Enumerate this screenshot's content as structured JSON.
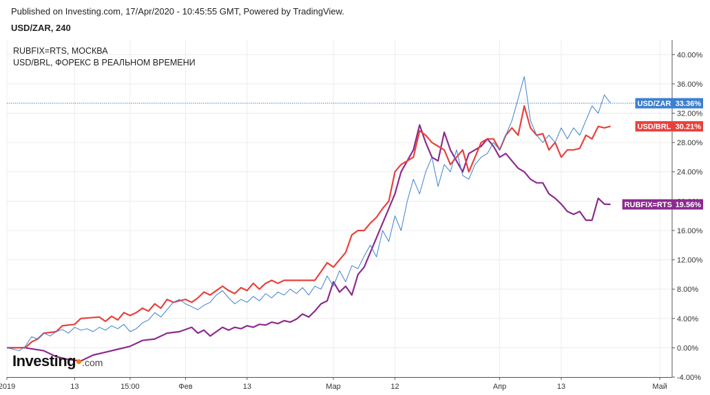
{
  "header": {
    "published": "Published on Investing.com, 17/Apr/2020 - 10:45:55 GMT, Powered by TradingView.",
    "subtitle": "USD/ZAR, 240"
  },
  "legend": [
    "RUBFIX=RTS, МОСКВА",
    "USD/BRL, ФОРЕКС В РЕАЛЬНОМ ВРЕМЕНИ"
  ],
  "logo": {
    "brand": "Investing",
    "suffix": ".com"
  },
  "colors": {
    "USD/ZAR": "#3d7fd1",
    "USD/BRL": "#e8413c",
    "RUBFIX=RTS": "#8c2a8e",
    "grid": "#ececec"
  },
  "chart_data": {
    "type": "line",
    "ylim": [
      -4,
      42
    ],
    "y_ticks": [
      -4,
      0,
      4,
      8,
      12,
      16,
      20,
      24,
      28,
      32,
      36,
      40
    ],
    "y_tick_labels": [
      "-4.00%",
      "0.00%",
      "4.00%",
      "8.00%",
      "12.00%",
      "16.00%",
      "20.00%",
      "24.00%",
      "28.00%",
      "32.00%",
      "36.00%",
      "40.00%"
    ],
    "x_range": [
      0,
      108
    ],
    "x_ticks": [
      {
        "x": 0,
        "label": "2019"
      },
      {
        "x": 11,
        "label": "13"
      },
      {
        "x": 20,
        "label": "15:00"
      },
      {
        "x": 29,
        "label": "Фев"
      },
      {
        "x": 39,
        "label": "13"
      },
      {
        "x": 53,
        "label": "Мар"
      },
      {
        "x": 63,
        "label": "12"
      },
      {
        "x": 80,
        "label": "Апр"
      },
      {
        "x": 90,
        "label": "13"
      },
      {
        "x": 106,
        "label": "Май"
      }
    ],
    "series": [
      {
        "name": "USD/ZAR",
        "label": "USD/ZAR",
        "last_label": "33.36%",
        "last": 33.36,
        "points": [
          [
            0,
            0
          ],
          [
            1,
            -0.2
          ],
          [
            2,
            -0.4
          ],
          [
            3,
            0.2
          ],
          [
            4,
            1.5
          ],
          [
            5,
            1.2
          ],
          [
            6,
            2
          ],
          [
            7,
            1.6
          ],
          [
            8,
            2.2
          ],
          [
            9,
            2.5
          ],
          [
            10,
            2
          ],
          [
            11,
            2.8
          ],
          [
            12,
            2.4
          ],
          [
            13,
            2.6
          ],
          [
            14,
            2.2
          ],
          [
            15,
            2.8
          ],
          [
            16,
            2.4
          ],
          [
            17,
            3
          ],
          [
            18,
            2.6
          ],
          [
            19,
            3.2
          ],
          [
            20,
            2.2
          ],
          [
            21,
            2.6
          ],
          [
            22,
            3.4
          ],
          [
            23,
            3.8
          ],
          [
            24,
            4.8
          ],
          [
            25,
            4.2
          ],
          [
            26,
            5.2
          ],
          [
            27,
            6.2
          ],
          [
            28,
            6.6
          ],
          [
            29,
            6
          ],
          [
            30,
            5.6
          ],
          [
            31,
            5.2
          ],
          [
            32,
            5.8
          ],
          [
            33,
            6.2
          ],
          [
            34,
            7.2
          ],
          [
            35,
            7.8
          ],
          [
            36,
            6.8
          ],
          [
            37,
            6
          ],
          [
            38,
            6.6
          ],
          [
            39,
            6.2
          ],
          [
            40,
            7
          ],
          [
            41,
            6.4
          ],
          [
            42,
            7.4
          ],
          [
            43,
            6.8
          ],
          [
            44,
            7.6
          ],
          [
            45,
            7.2
          ],
          [
            46,
            8
          ],
          [
            47,
            7.4
          ],
          [
            48,
            8.2
          ],
          [
            49,
            7.2
          ],
          [
            50,
            8.4
          ],
          [
            51,
            8
          ],
          [
            52,
            9.8
          ],
          [
            53,
            8.4
          ],
          [
            54,
            10.5
          ],
          [
            55,
            9
          ],
          [
            56,
            11.2
          ],
          [
            57,
            10.8
          ],
          [
            58,
            12.5
          ],
          [
            59,
            14
          ],
          [
            60,
            12.4
          ],
          [
            61,
            16
          ],
          [
            62,
            14.5
          ],
          [
            63,
            18
          ],
          [
            64,
            16
          ],
          [
            65,
            20
          ],
          [
            66,
            23
          ],
          [
            67,
            21
          ],
          [
            68,
            24
          ],
          [
            69,
            26
          ],
          [
            70,
            22
          ],
          [
            71,
            25
          ],
          [
            72,
            24
          ],
          [
            73,
            27
          ],
          [
            74,
            23.5
          ],
          [
            75,
            23
          ],
          [
            76,
            25
          ],
          [
            77,
            26
          ],
          [
            78,
            26.5
          ],
          [
            79,
            28
          ],
          [
            80,
            27
          ],
          [
            81,
            29
          ],
          [
            82,
            31
          ],
          [
            83,
            34
          ],
          [
            84,
            37
          ],
          [
            85,
            31
          ],
          [
            86,
            29
          ],
          [
            87,
            28
          ],
          [
            88,
            29
          ],
          [
            89,
            28
          ],
          [
            90,
            30
          ],
          [
            91,
            28.5
          ],
          [
            92,
            30
          ],
          [
            93,
            29
          ],
          [
            94,
            31
          ],
          [
            95,
            33
          ],
          [
            96,
            32
          ],
          [
            97,
            34.5
          ],
          [
            98,
            33.36
          ]
        ]
      },
      {
        "name": "USD/BRL",
        "label": "USD/BRL",
        "last_label": "30.21%",
        "last": 30.21,
        "points": [
          [
            0,
            0
          ],
          [
            3,
            0
          ],
          [
            4,
            0.8
          ],
          [
            5,
            1.2
          ],
          [
            6,
            2
          ],
          [
            8,
            2.2
          ],
          [
            9,
            3
          ],
          [
            11,
            3.2
          ],
          [
            12,
            4
          ],
          [
            15,
            4.2
          ],
          [
            16,
            3.6
          ],
          [
            17,
            4.3
          ],
          [
            18,
            3.8
          ],
          [
            19,
            4.8
          ],
          [
            20,
            4.4
          ],
          [
            21,
            4.8
          ],
          [
            22,
            5.4
          ],
          [
            23,
            5
          ],
          [
            24,
            6
          ],
          [
            25,
            5.4
          ],
          [
            26,
            6.6
          ],
          [
            27,
            6.2
          ],
          [
            28,
            6.4
          ],
          [
            29,
            6.6
          ],
          [
            30,
            6.2
          ],
          [
            31,
            6.8
          ],
          [
            32,
            7.6
          ],
          [
            33,
            7.2
          ],
          [
            34,
            7.8
          ],
          [
            35,
            8.4
          ],
          [
            36,
            7.8
          ],
          [
            37,
            7.4
          ],
          [
            38,
            8.2
          ],
          [
            39,
            7.8
          ],
          [
            40,
            8.8
          ],
          [
            41,
            8
          ],
          [
            42,
            8.8
          ],
          [
            43,
            9.2
          ],
          [
            44,
            8.8
          ],
          [
            45,
            9.2
          ],
          [
            46,
            9.2
          ],
          [
            47,
            9.2
          ],
          [
            48,
            9.2
          ],
          [
            49,
            9.2
          ],
          [
            50,
            9.2
          ],
          [
            51,
            10.4
          ],
          [
            52,
            11.6
          ],
          [
            53,
            11
          ],
          [
            54,
            12
          ],
          [
            55,
            13
          ],
          [
            56,
            15.4
          ],
          [
            57,
            16
          ],
          [
            58,
            16
          ],
          [
            59,
            17
          ],
          [
            60,
            17.8
          ],
          [
            61,
            19
          ],
          [
            62,
            20
          ],
          [
            63,
            24
          ],
          [
            64,
            25
          ],
          [
            65,
            25.5
          ],
          [
            66,
            26
          ],
          [
            67,
            29.6
          ],
          [
            68,
            29
          ],
          [
            69,
            28
          ],
          [
            70,
            27.5
          ],
          [
            71,
            27
          ],
          [
            72,
            25
          ],
          [
            73,
            26
          ],
          [
            74,
            27
          ],
          [
            75,
            24
          ],
          [
            76,
            26
          ],
          [
            77,
            28
          ],
          [
            78,
            28.5
          ],
          [
            79,
            28.5
          ],
          [
            80,
            27
          ],
          [
            81,
            29
          ],
          [
            82,
            30
          ],
          [
            83,
            29
          ],
          [
            84,
            33
          ],
          [
            85,
            30
          ],
          [
            86,
            29
          ],
          [
            87,
            29.2
          ],
          [
            88,
            27
          ],
          [
            89,
            28
          ],
          [
            90,
            26
          ],
          [
            91,
            27
          ],
          [
            92,
            27
          ],
          [
            93,
            27.2
          ],
          [
            94,
            29
          ],
          [
            95,
            28.5
          ],
          [
            96,
            30.2
          ],
          [
            97,
            30
          ],
          [
            98,
            30.21
          ]
        ]
      },
      {
        "name": "RUBFIX=RTS",
        "label": "RUBFIX=RTS",
        "last_label": "19.56%",
        "last": 19.56,
        "points": [
          [
            0,
            0
          ],
          [
            3,
            0
          ],
          [
            6,
            -0.4
          ],
          [
            8,
            -1.2
          ],
          [
            10,
            -1.6
          ],
          [
            12,
            -1.8
          ],
          [
            14,
            -1
          ],
          [
            16,
            -0.6
          ],
          [
            18,
            -0.2
          ],
          [
            20,
            0.2
          ],
          [
            22,
            1
          ],
          [
            24,
            1.2
          ],
          [
            26,
            2
          ],
          [
            28,
            2.2
          ],
          [
            30,
            2.8
          ],
          [
            31,
            2
          ],
          [
            32,
            2.4
          ],
          [
            33,
            1.6
          ],
          [
            34,
            2.2
          ],
          [
            35,
            2.8
          ],
          [
            36,
            2.4
          ],
          [
            37,
            2.8
          ],
          [
            38,
            2.6
          ],
          [
            39,
            3
          ],
          [
            40,
            2.8
          ],
          [
            41,
            3.2
          ],
          [
            42,
            3.1
          ],
          [
            43,
            3.5
          ],
          [
            44,
            3.3
          ],
          [
            45,
            3.7
          ],
          [
            46,
            3.5
          ],
          [
            47,
            3.9
          ],
          [
            48,
            4.6
          ],
          [
            49,
            4.2
          ],
          [
            50,
            5
          ],
          [
            51,
            6
          ],
          [
            52,
            6.4
          ],
          [
            53,
            9
          ],
          [
            54,
            7.6
          ],
          [
            55,
            8.4
          ],
          [
            56,
            7.2
          ],
          [
            57,
            10
          ],
          [
            58,
            11
          ],
          [
            59,
            13
          ],
          [
            60,
            15
          ],
          [
            61,
            17
          ],
          [
            62,
            19
          ],
          [
            63,
            21
          ],
          [
            64,
            24
          ],
          [
            65,
            25.5
          ],
          [
            66,
            27
          ],
          [
            67,
            30.4
          ],
          [
            68,
            28
          ],
          [
            69,
            26
          ],
          [
            70,
            25.5
          ],
          [
            71,
            29.4
          ],
          [
            72,
            27
          ],
          [
            73,
            25.5
          ],
          [
            74,
            24
          ],
          [
            75,
            26.5
          ],
          [
            76,
            27
          ],
          [
            77,
            27.5
          ],
          [
            78,
            28.5
          ],
          [
            79,
            27.5
          ],
          [
            80,
            26
          ],
          [
            81,
            26.5
          ],
          [
            82,
            25.5
          ],
          [
            83,
            24.5
          ],
          [
            84,
            24
          ],
          [
            85,
            23
          ],
          [
            86,
            22.5
          ],
          [
            87,
            22.5
          ],
          [
            88,
            21
          ],
          [
            89,
            20.4
          ],
          [
            90,
            19.6
          ],
          [
            91,
            18.6
          ],
          [
            92,
            18.2
          ],
          [
            93,
            18.6
          ],
          [
            94,
            17.4
          ],
          [
            95,
            17.4
          ],
          [
            96,
            20.4
          ],
          [
            97,
            19.6
          ],
          [
            98,
            19.56
          ]
        ]
      }
    ]
  }
}
